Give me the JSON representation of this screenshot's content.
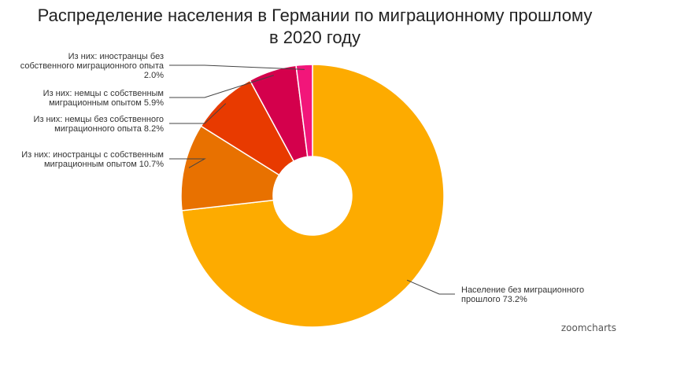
{
  "title": {
    "line1": "Распределение населения в Германии по миграционному прошлому",
    "line2": "в 2020 году"
  },
  "brand": "zoomcharts",
  "chart_data": {
    "type": "pie",
    "donut": true,
    "slices": [
      {
        "label": [
          "Население без миграционного",
          "прошлого 73.2%"
        ],
        "value": 73.2,
        "color": "#fdab00"
      },
      {
        "label": [
          "Из них: иностранцы с собственным",
          "миграционным опытом 10.7%"
        ],
        "value": 10.7,
        "color": "#e87100"
      },
      {
        "label": [
          "Из них: немцы без собственного",
          "миграционного опыта 8.2%"
        ],
        "value": 8.2,
        "color": "#e83a00"
      },
      {
        "label": [
          "Из них: немцы с собственным",
          "миграционным опытом 5.9%"
        ],
        "value": 5.9,
        "color": "#d4004c"
      },
      {
        "label": [
          "Из них: иностранцы без",
          "собственного миграционного опыта",
          "2.0%"
        ],
        "value": 2.0,
        "color": "#f2167a"
      }
    ]
  }
}
